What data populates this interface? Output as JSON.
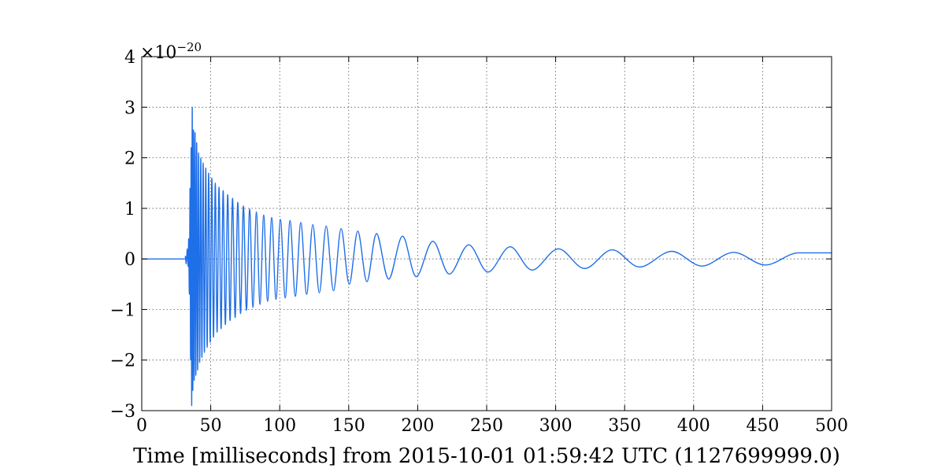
{
  "chart_data": {
    "type": "line",
    "title": "",
    "xlabel": "Time [milliseconds] from 2015-10-01 01:59:42 UTC (1127699999.0)",
    "ylabel": "",
    "y_offset_text": {
      "base": "×10",
      "exponent": "−20"
    },
    "xlim": [
      0,
      500
    ],
    "ylim": [
      -3,
      4
    ],
    "x_ticks": [
      0,
      50,
      100,
      150,
      200,
      250,
      300,
      350,
      400,
      450,
      500
    ],
    "x_tick_labels": [
      "0",
      "50",
      "100",
      "150",
      "200",
      "250",
      "300",
      "350",
      "400",
      "450",
      "500"
    ],
    "y_ticks": [
      -3,
      -2,
      -1,
      0,
      1,
      2,
      3,
      4
    ],
    "y_tick_labels": [
      "−3",
      "−2",
      "−1",
      "0",
      "1",
      "2",
      "3",
      "4"
    ],
    "grid": true,
    "line_color": "#1f6fe8",
    "series": [
      {
        "name": "",
        "x": [
          0,
          30,
          31.5,
          32.2,
          33,
          33.6,
          34,
          34.5,
          35,
          35.4,
          35.8,
          36.2,
          36.6,
          37,
          37.5,
          38,
          38.6,
          39.2,
          39.8,
          40.5,
          41.2,
          42,
          42.8,
          43.6,
          44.5,
          45.4,
          46.4,
          47.4,
          48.5,
          49.6,
          50.8,
          52,
          53.3,
          54.6,
          56,
          57.5,
          59,
          60.6,
          62.3,
          64,
          65.8,
          67.7,
          69.6,
          71.6,
          73.7,
          75.9,
          78.2,
          80.6,
          83.1,
          85.7,
          88.4,
          91.2,
          94.2,
          97.3,
          100.5,
          104,
          107.5,
          111.3,
          115.3,
          119.5,
          124,
          128.7,
          133.7,
          139,
          144.5,
          150.4,
          156.6,
          163.2,
          170.2,
          179,
          189,
          199,
          211,
          223,
          237,
          251,
          267,
          283,
          302,
          321,
          341,
          361,
          384,
          406,
          429,
          452,
          476,
          500
        ],
        "y": [
          0,
          0,
          0.05,
          -0.1,
          0.2,
          -0.15,
          0.4,
          -0.7,
          1.4,
          -2.0,
          2.2,
          -2.9,
          3.0,
          -2.6,
          2.55,
          -2.4,
          2.5,
          -2.3,
          2.3,
          -2.2,
          2.1,
          -2.05,
          2.0,
          -1.95,
          1.9,
          -1.85,
          1.8,
          -1.75,
          1.7,
          -1.65,
          1.6,
          -1.55,
          1.5,
          -1.45,
          1.42,
          -1.38,
          1.35,
          -1.3,
          1.27,
          -1.22,
          1.2,
          -1.16,
          1.12,
          -1.08,
          1.05,
          -1.02,
          0.99,
          -0.96,
          0.93,
          -0.9,
          0.87,
          -0.84,
          0.82,
          -0.8,
          0.78,
          -0.77,
          0.76,
          -0.74,
          0.72,
          -0.7,
          0.68,
          -0.67,
          0.65,
          -0.63,
          0.6,
          -0.5,
          0.55,
          -0.45,
          0.5,
          -0.4,
          0.45,
          -0.35,
          0.35,
          -0.3,
          0.28,
          -0.26,
          0.24,
          -0.22,
          0.2,
          -0.19,
          0.18,
          -0.16,
          0.15,
          -0.14,
          0.13,
          -0.12,
          0.12,
          0.12
        ]
      }
    ]
  }
}
